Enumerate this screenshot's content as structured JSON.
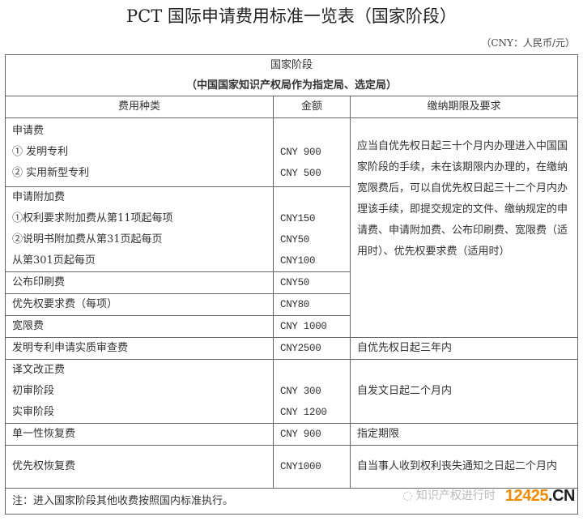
{
  "title": "PCT 国际申请费用标准一览表（国家阶段）",
  "unit": "（CNY：人民币/元）",
  "table": {
    "heading": "国家阶段",
    "subheading": "（中国国家知识产权局作为指定局、选定局）",
    "columns": [
      "费用种类",
      "金额",
      "缴纳期限及要求"
    ],
    "rows": [
      {
        "category": [
          "申请费",
          "①  发明专利",
          "②  实用新型专利"
        ],
        "amount": [
          "",
          "CNY 900",
          "CNY 500"
        ]
      },
      {
        "category": [
          "申请附加费",
          "①权利要求附加费从第11项起每项",
          "②说明书附加费从第31页起每页",
          "从第301页起每页"
        ],
        "amount": [
          "",
          "CNY150",
          "CNY50",
          "CNY100"
        ]
      },
      {
        "category": [
          "公布印刷费"
        ],
        "amount": [
          "CNY50"
        ]
      },
      {
        "category": [
          "优先权要求费（每项）"
        ],
        "amount": [
          "CNY80"
        ]
      },
      {
        "category": [
          "宽限费"
        ],
        "amount": [
          "CNY 1000"
        ]
      },
      {
        "category": [
          "发明专利申请实质审查费"
        ],
        "amount": [
          "CNY2500"
        ],
        "requirement": "自优先权日起三年内"
      },
      {
        "category": [
          "译文改正费",
          "初审阶段",
          "实审阶段"
        ],
        "amount": [
          "",
          "CNY 300",
          "CNY 1200"
        ],
        "requirement": "自发文日起二个月内"
      },
      {
        "category": [
          "单一性恢复费"
        ],
        "amount": [
          "CNY 900"
        ],
        "requirement": "指定期限"
      },
      {
        "category": [
          "优先权恢复费"
        ],
        "amount": [
          "CNY1000"
        ],
        "requirement": "自当事人收到权利丧失通知之日起二个月内"
      }
    ],
    "merged_requirement": "应当自优先权日起三十个月内办理进入中国国家阶段的手续，未在该期限内办理的，在缴纳宽限费后，可以自优先权日起三十二个月内办理该手续，即提交规定的文件、缴纳规定的申请费、申请附加费、公布印刷费、宽限费（适用时）、优先权要求费（适用时）",
    "note": "注：进入国家阶段其他收费按照国内标准执行。"
  },
  "watermark": {
    "text": "知识产权进行时",
    "logo_number": "12425",
    "logo_suffix": ".CN",
    "logo_color": "#f08a00"
  }
}
